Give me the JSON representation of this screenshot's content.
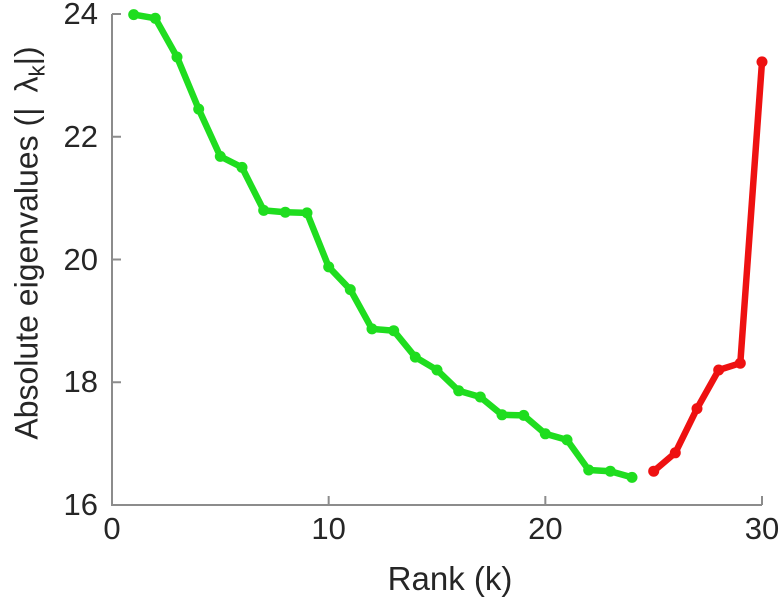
{
  "chart_data": {
    "type": "line",
    "title": "",
    "xlabel": "Rank (k)",
    "ylabel": "Absolute eigenvalues (|λk|)",
    "ylabel_parts": {
      "prefix": "Absolute eigenvalues (|",
      "lambda": "λ",
      "lambda_subscript": "k",
      "suffix": "|)"
    },
    "xlim": [
      0,
      30
    ],
    "ylim": [
      16,
      24
    ],
    "xticks": [
      "0",
      "10",
      "20",
      "30"
    ],
    "yticks": [
      "16",
      "18",
      "20",
      "22",
      "24"
    ],
    "grid": false,
    "legend_position": "none",
    "marker": "circle",
    "axis_color": "#8c8c8c",
    "text_color": "#262626",
    "background_color": "#ffffff",
    "series": [
      {
        "name": "leading-eigenvalues-green",
        "color": "#1fdd1f",
        "x": [
          1,
          2,
          3,
          4,
          5,
          6,
          7,
          8,
          9,
          10,
          11,
          12,
          13,
          14,
          15,
          16,
          17,
          18,
          19,
          20,
          21,
          22,
          23,
          24
        ],
        "values": [
          23.99,
          23.93,
          23.3,
          22.45,
          21.68,
          21.5,
          20.8,
          20.77,
          20.76,
          19.88,
          19.51,
          18.87,
          18.84,
          18.41,
          18.2,
          17.86,
          17.76,
          17.47,
          17.46,
          17.16,
          17.06,
          16.57,
          16.55,
          16.45
        ]
      },
      {
        "name": "trailing-eigenvalues-red",
        "color": "#ee1111",
        "x": [
          25,
          26,
          27,
          28,
          29,
          30
        ],
        "values": [
          16.55,
          16.85,
          17.57,
          18.2,
          18.31,
          23.22
        ]
      }
    ]
  }
}
